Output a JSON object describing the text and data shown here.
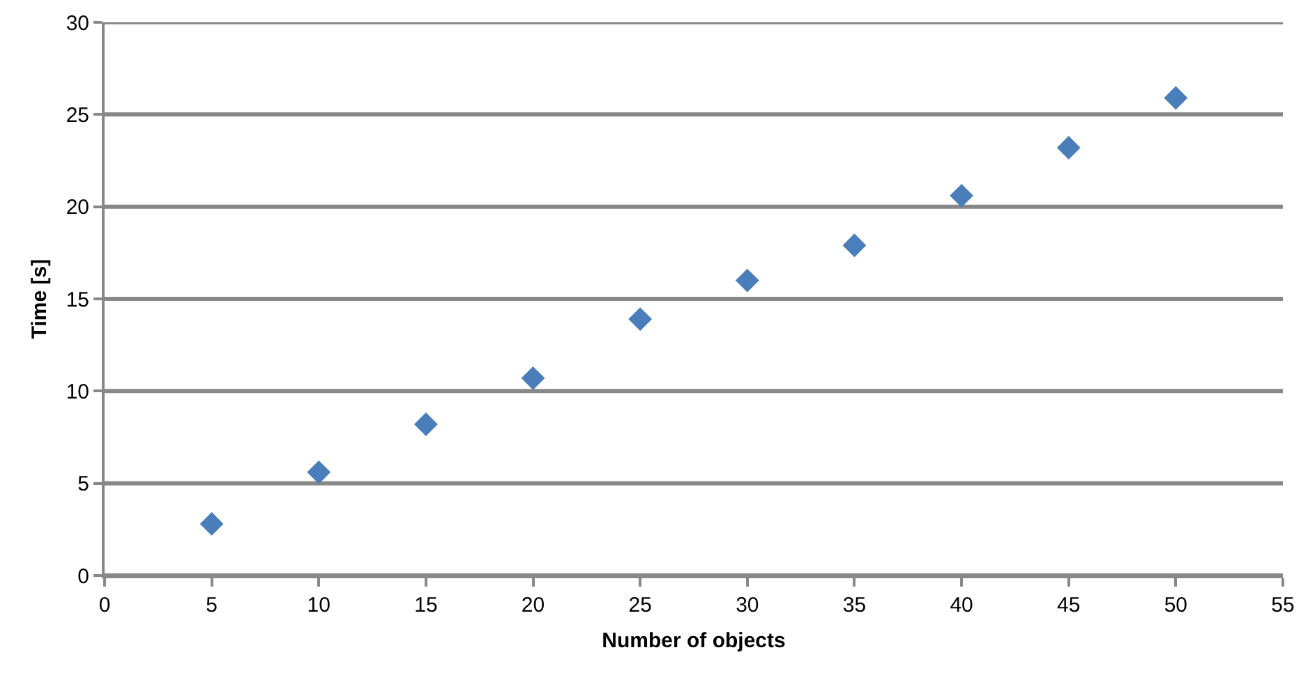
{
  "chart_data": {
    "type": "scatter",
    "xlabel": "Number of objects",
    "ylabel": "Time [s]",
    "x": [
      5,
      10,
      15,
      20,
      25,
      30,
      35,
      40,
      45,
      50
    ],
    "series": [
      {
        "color": "#4a7ebb",
        "values": [
          2.8,
          5.6,
          8.2,
          10.7,
          13.9,
          16.0,
          17.9,
          20.6,
          23.2,
          25.9
        ]
      }
    ],
    "xlim": [
      0,
      55
    ],
    "xticks": [
      0,
      5,
      10,
      15,
      20,
      25,
      30,
      35,
      40,
      45,
      50,
      55
    ],
    "ylim": [
      0,
      30
    ],
    "yticks": [
      0,
      5,
      10,
      15,
      20,
      25,
      30
    ],
    "grid": "y",
    "marker": "diamond"
  }
}
